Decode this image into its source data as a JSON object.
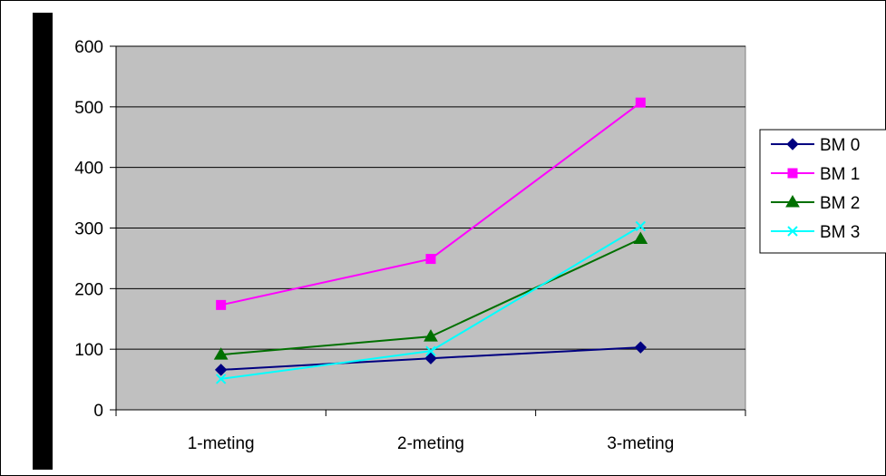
{
  "chart_data": {
    "type": "line",
    "categories": [
      "1-meting",
      "2-meting",
      "3-meting"
    ],
    "series": [
      {
        "name": "BM 0",
        "values": [
          66,
          85,
          103
        ],
        "color": "#000080",
        "marker": "diamond"
      },
      {
        "name": "BM 1",
        "values": [
          173,
          249,
          507
        ],
        "color": "#ff00ff",
        "marker": "square"
      },
      {
        "name": "BM 2",
        "values": [
          91,
          121,
          282
        ],
        "color": "#007000",
        "marker": "triangle"
      },
      {
        "name": "BM 3",
        "values": [
          51,
          97,
          303
        ],
        "color": "#00ffff",
        "marker": "x"
      }
    ],
    "ylim": [
      0,
      600
    ],
    "yticks": [
      "0",
      "100",
      "200",
      "300",
      "400",
      "500",
      "600"
    ],
    "grid": true,
    "plot_background": "#c0c0c0",
    "legend_position": "right"
  }
}
